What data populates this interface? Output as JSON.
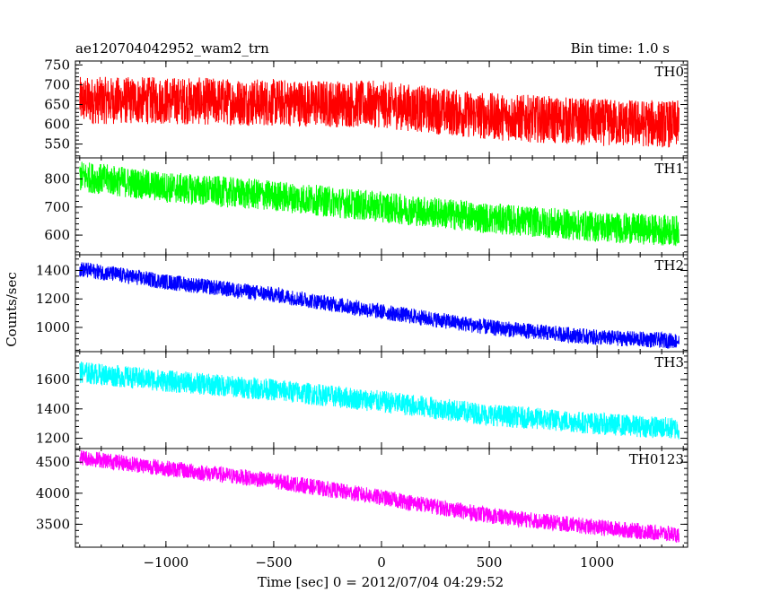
{
  "header": {
    "title": "ae120704042952_wam2_trn",
    "bin_time": "Bin time: 1.0 s"
  },
  "chart_data": {
    "type": "line",
    "xlabel": "Time [sec] 0 = 2012/07/04 04:29:52",
    "ylabel": "Counts/sec",
    "xlim": [
      -1420,
      1420
    ],
    "x_data_range": [
      -1400,
      1380
    ],
    "x_ticks": [
      -1000,
      -500,
      0,
      500,
      1000
    ],
    "x_tick_labels": [
      "−1000",
      "−500",
      "0",
      "500",
      "1000"
    ],
    "panels": [
      {
        "name": "TH0",
        "color": "#ff0000",
        "ylim": [
          515,
          760
        ],
        "y_ticks": [
          550,
          600,
          650,
          700,
          750
        ],
        "trend": [
          [
            -1400,
            660
          ],
          [
            -1000,
            660
          ],
          [
            -500,
            655
          ],
          [
            0,
            650
          ],
          [
            500,
            620
          ],
          [
            1000,
            605
          ],
          [
            1380,
            600
          ]
        ],
        "noise_half_range": 60
      },
      {
        "name": "TH1",
        "color": "#00ff00",
        "ylim": [
          530,
          875
        ],
        "y_ticks": [
          600,
          700,
          800
        ],
        "trend": [
          [
            -1400,
            810
          ],
          [
            -1000,
            770
          ],
          [
            -500,
            740
          ],
          [
            0,
            700
          ],
          [
            500,
            660
          ],
          [
            1000,
            630
          ],
          [
            1380,
            615
          ]
        ],
        "noise_half_range": 55
      },
      {
        "name": "TH2",
        "color": "#0000ff",
        "ylim": [
          830,
          1510
        ],
        "y_ticks": [
          1000,
          1200,
          1400
        ],
        "trend": [
          [
            -1400,
            1410
          ],
          [
            -1000,
            1320
          ],
          [
            -500,
            1230
          ],
          [
            0,
            1110
          ],
          [
            500,
            1000
          ],
          [
            1000,
            930
          ],
          [
            1380,
            905
          ]
        ],
        "noise_half_range": 55
      },
      {
        "name": "TH3",
        "color": "#00ffff",
        "ylim": [
          1130,
          1790
        ],
        "y_ticks": [
          1200,
          1400,
          1600
        ],
        "trend": [
          [
            -1400,
            1650
          ],
          [
            -1000,
            1590
          ],
          [
            -500,
            1530
          ],
          [
            0,
            1450
          ],
          [
            500,
            1360
          ],
          [
            1000,
            1300
          ],
          [
            1380,
            1265
          ]
        ],
        "noise_half_range": 75
      },
      {
        "name": "TH0123",
        "color": "#ff00ff",
        "ylim": [
          3130,
          4720
        ],
        "y_ticks": [
          3500,
          4000,
          4500
        ],
        "trend": [
          [
            -1400,
            4580
          ],
          [
            -1000,
            4400
          ],
          [
            -500,
            4200
          ],
          [
            0,
            3930
          ],
          [
            500,
            3640
          ],
          [
            1000,
            3450
          ],
          [
            1380,
            3330
          ]
        ],
        "noise_half_range": 130
      }
    ]
  }
}
